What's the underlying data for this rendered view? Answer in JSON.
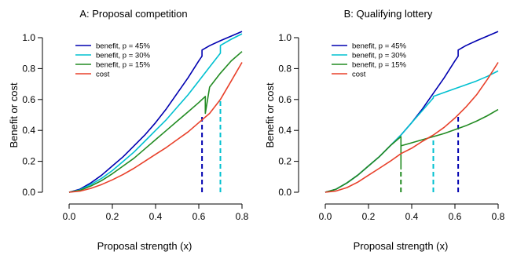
{
  "chart_data": [
    {
      "type": "line",
      "title": "A: Proposal competition",
      "xlabel": "Proposal strength (x)",
      "ylabel": "Benefit or cost",
      "xlim": [
        0,
        0.8
      ],
      "ylim": [
        0,
        1.0
      ],
      "xticks": [
        "0.0",
        "0.2",
        "0.4",
        "0.6",
        "0.8"
      ],
      "yticks": [
        "0.0",
        "0.2",
        "0.4",
        "0.6",
        "0.8",
        "1.0"
      ],
      "grid": false,
      "legend": "top-left",
      "series": [
        {
          "name": "benefit, p = 45%",
          "color": "#0000b0",
          "x": [
            0,
            0.05,
            0.1,
            0.15,
            0.2,
            0.25,
            0.3,
            0.35,
            0.4,
            0.45,
            0.5,
            0.55,
            0.6,
            0.615,
            0.615,
            0.65,
            0.7,
            0.75,
            0.8
          ],
          "y": [
            0,
            0.02,
            0.06,
            0.11,
            0.17,
            0.23,
            0.3,
            0.37,
            0.45,
            0.54,
            0.64,
            0.74,
            0.85,
            0.88,
            0.92,
            0.948,
            0.98,
            1.01,
            1.04
          ],
          "drop": {
            "x": 0.615,
            "y": 0.5
          }
        },
        {
          "name": "benefit, p = 30%",
          "color": "#00c0d0",
          "x": [
            0,
            0.05,
            0.1,
            0.15,
            0.2,
            0.25,
            0.3,
            0.35,
            0.4,
            0.45,
            0.5,
            0.55,
            0.6,
            0.65,
            0.7,
            0.7,
            0.75,
            0.8
          ],
          "y": [
            0,
            0.015,
            0.05,
            0.09,
            0.14,
            0.2,
            0.26,
            0.33,
            0.4,
            0.47,
            0.55,
            0.63,
            0.72,
            0.81,
            0.9,
            0.95,
            0.99,
            1.025
          ],
          "drop": {
            "x": 0.7,
            "y": 0.595
          }
        },
        {
          "name": "benefit, p = 15%",
          "color": "#228b22",
          "x": [
            0,
            0.05,
            0.1,
            0.15,
            0.2,
            0.25,
            0.3,
            0.35,
            0.4,
            0.45,
            0.5,
            0.55,
            0.6,
            0.63,
            0.63,
            0.65,
            0.7,
            0.75,
            0.8
          ],
          "y": [
            0,
            0.012,
            0.04,
            0.075,
            0.12,
            0.17,
            0.22,
            0.28,
            0.34,
            0.4,
            0.46,
            0.52,
            0.58,
            0.62,
            0.51,
            0.68,
            0.77,
            0.85,
            0.91
          ]
        },
        {
          "name": "cost",
          "color": "#e8402a",
          "x": [
            0,
            0.05,
            0.1,
            0.15,
            0.2,
            0.25,
            0.3,
            0.35,
            0.4,
            0.45,
            0.5,
            0.55,
            0.6,
            0.65,
            0.7,
            0.75,
            0.8
          ],
          "y": [
            0,
            0.007,
            0.025,
            0.05,
            0.08,
            0.115,
            0.155,
            0.2,
            0.245,
            0.29,
            0.34,
            0.39,
            0.45,
            0.51,
            0.6,
            0.72,
            0.84
          ]
        }
      ]
    },
    {
      "type": "line",
      "title": "B: Qualifying lottery",
      "xlabel": "Proposal strength (x)",
      "ylabel": "Benefit or cost",
      "xlim": [
        0,
        0.8
      ],
      "ylim": [
        0,
        1.0
      ],
      "xticks": [
        "0.0",
        "0.2",
        "0.4",
        "0.6",
        "0.8"
      ],
      "yticks": [
        "0.0",
        "0.2",
        "0.4",
        "0.6",
        "0.8",
        "1.0"
      ],
      "grid": false,
      "legend": "top-left",
      "series": [
        {
          "name": "benefit, p = 45%",
          "color": "#0000b0",
          "x": [
            0,
            0.05,
            0.1,
            0.15,
            0.2,
            0.25,
            0.3,
            0.35,
            0.4,
            0.45,
            0.5,
            0.55,
            0.6,
            0.615,
            0.615,
            0.65,
            0.7,
            0.75,
            0.8
          ],
          "y": [
            0,
            0.02,
            0.06,
            0.11,
            0.17,
            0.23,
            0.3,
            0.37,
            0.45,
            0.54,
            0.64,
            0.74,
            0.85,
            0.88,
            0.92,
            0.948,
            0.98,
            1.01,
            1.04
          ],
          "drop": {
            "x": 0.615,
            "y": 0.5
          }
        },
        {
          "name": "benefit, p = 30%",
          "color": "#00c0d0",
          "x": [
            0,
            0.05,
            0.1,
            0.15,
            0.2,
            0.25,
            0.3,
            0.35,
            0.4,
            0.45,
            0.5,
            0.5,
            0.55,
            0.6,
            0.65,
            0.7,
            0.75,
            0.8
          ],
          "y": [
            0,
            0.02,
            0.06,
            0.11,
            0.17,
            0.23,
            0.3,
            0.37,
            0.45,
            0.53,
            0.61,
            0.62,
            0.645,
            0.67,
            0.695,
            0.72,
            0.75,
            0.785
          ],
          "drop": {
            "x": 0.5,
            "y": 0.34
          }
        },
        {
          "name": "benefit, p = 15%",
          "color": "#228b22",
          "x": [
            0,
            0.05,
            0.1,
            0.15,
            0.2,
            0.25,
            0.3,
            0.35,
            0.35,
            0.35,
            0.4,
            0.45,
            0.5,
            0.55,
            0.6,
            0.65,
            0.7,
            0.75,
            0.8
          ],
          "y": [
            0,
            0.02,
            0.06,
            0.11,
            0.17,
            0.23,
            0.3,
            0.36,
            0.15,
            0.3,
            0.32,
            0.34,
            0.36,
            0.38,
            0.405,
            0.43,
            0.46,
            0.495,
            0.535
          ],
          "drop": {
            "x": 0.35,
            "y": 0.15
          }
        },
        {
          "name": "cost",
          "color": "#e8402a",
          "x": [
            0,
            0.05,
            0.1,
            0.15,
            0.2,
            0.25,
            0.3,
            0.35,
            0.4,
            0.45,
            0.5,
            0.55,
            0.6,
            0.65,
            0.7,
            0.75,
            0.8
          ],
          "y": [
            0,
            0.008,
            0.03,
            0.065,
            0.11,
            0.155,
            0.2,
            0.25,
            0.285,
            0.33,
            0.37,
            0.42,
            0.48,
            0.55,
            0.63,
            0.73,
            0.84
          ]
        }
      ]
    }
  ]
}
